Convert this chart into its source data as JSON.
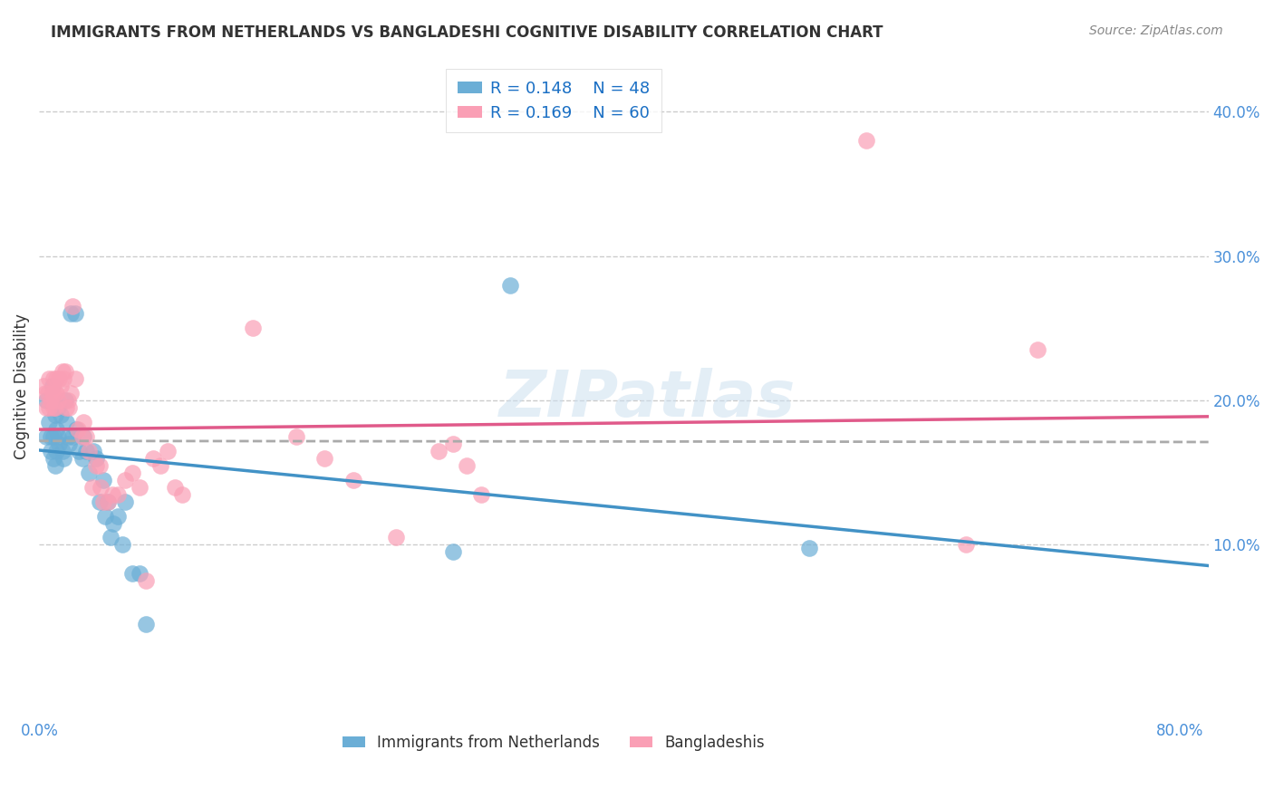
{
  "title": "IMMIGRANTS FROM NETHERLANDS VS BANGLADESHI COGNITIVE DISABILITY CORRELATION CHART",
  "source": "Source: ZipAtlas.com",
  "ylabel": "Cognitive Disability",
  "xlim": [
    0.0,
    0.82
  ],
  "ylim": [
    -0.02,
    0.44
  ],
  "legend_R1": "R = 0.148",
  "legend_N1": "N = 48",
  "legend_R2": "R = 0.169",
  "legend_N2": "N = 60",
  "color_blue": "#6baed6",
  "color_pink": "#fa9fb5",
  "color_blue_line": "#4292c6",
  "color_pink_line": "#e05a8a",
  "color_dashed_line": "#aaaaaa",
  "watermark": "ZIPatlas",
  "nl_x": [
    0.005,
    0.005,
    0.007,
    0.008,
    0.008,
    0.009,
    0.01,
    0.01,
    0.011,
    0.011,
    0.012,
    0.012,
    0.013,
    0.013,
    0.014,
    0.015,
    0.016,
    0.017,
    0.018,
    0.019,
    0.02,
    0.021,
    0.022,
    0.023,
    0.025,
    0.026,
    0.028,
    0.03,
    0.031,
    0.033,
    0.035,
    0.038,
    0.04,
    0.042,
    0.045,
    0.046,
    0.048,
    0.05,
    0.052,
    0.055,
    0.058,
    0.06,
    0.065,
    0.07,
    0.075,
    0.29,
    0.33,
    0.54
  ],
  "nl_y": [
    0.2,
    0.175,
    0.185,
    0.175,
    0.165,
    0.21,
    0.16,
    0.175,
    0.19,
    0.155,
    0.18,
    0.165,
    0.195,
    0.175,
    0.17,
    0.19,
    0.165,
    0.16,
    0.2,
    0.185,
    0.175,
    0.17,
    0.26,
    0.175,
    0.26,
    0.18,
    0.165,
    0.16,
    0.175,
    0.165,
    0.15,
    0.165,
    0.16,
    0.13,
    0.145,
    0.12,
    0.13,
    0.105,
    0.115,
    0.12,
    0.1,
    0.13,
    0.08,
    0.08,
    0.045,
    0.095,
    0.28,
    0.098
  ],
  "bd_x": [
    0.003,
    0.004,
    0.005,
    0.006,
    0.007,
    0.007,
    0.008,
    0.009,
    0.01,
    0.01,
    0.011,
    0.011,
    0.012,
    0.012,
    0.013,
    0.014,
    0.015,
    0.016,
    0.017,
    0.018,
    0.019,
    0.02,
    0.021,
    0.022,
    0.023,
    0.025,
    0.027,
    0.03,
    0.031,
    0.033,
    0.035,
    0.037,
    0.04,
    0.042,
    0.043,
    0.045,
    0.048,
    0.051,
    0.055,
    0.06,
    0.065,
    0.07,
    0.075,
    0.08,
    0.085,
    0.09,
    0.095,
    0.1,
    0.15,
    0.18,
    0.2,
    0.22,
    0.25,
    0.28,
    0.29,
    0.3,
    0.31,
    0.58,
    0.65,
    0.7
  ],
  "bd_y": [
    0.21,
    0.205,
    0.195,
    0.205,
    0.215,
    0.195,
    0.2,
    0.205,
    0.195,
    0.215,
    0.205,
    0.195,
    0.215,
    0.205,
    0.2,
    0.215,
    0.21,
    0.22,
    0.215,
    0.22,
    0.195,
    0.2,
    0.195,
    0.205,
    0.265,
    0.215,
    0.18,
    0.175,
    0.185,
    0.175,
    0.165,
    0.14,
    0.155,
    0.155,
    0.14,
    0.13,
    0.13,
    0.135,
    0.135,
    0.145,
    0.15,
    0.14,
    0.075,
    0.16,
    0.155,
    0.165,
    0.14,
    0.135,
    0.25,
    0.175,
    0.16,
    0.145,
    0.105,
    0.165,
    0.17,
    0.155,
    0.135,
    0.38,
    0.1,
    0.235
  ]
}
